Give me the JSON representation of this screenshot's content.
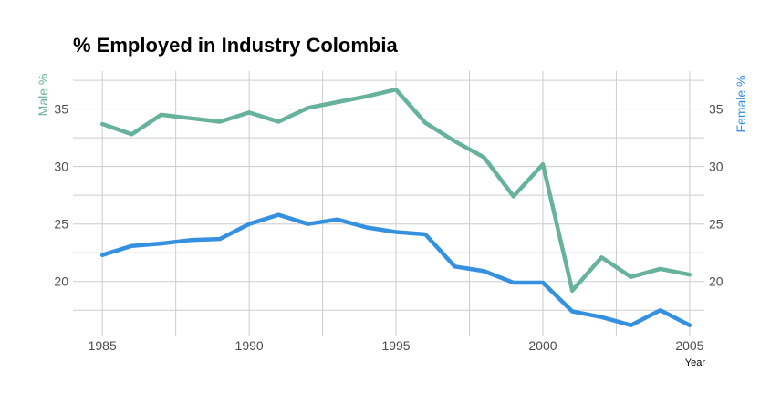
{
  "chart_data": {
    "type": "line",
    "title": "% Employed in Industry Colombia",
    "xlabel": "Year",
    "ylabel_left": "Male %",
    "ylabel_right": "Female %",
    "xlim": [
      1984.0,
      2005.5
    ],
    "ylim": [
      15.3,
      38.3
    ],
    "x_ticks": [
      1985,
      1990,
      1995,
      2000,
      2005
    ],
    "y_ticks": [
      20,
      25,
      30,
      35
    ],
    "grid": true,
    "colors": {
      "male": "#66b29a",
      "female": "#3590e0",
      "left_axis_label": "#66b29a",
      "right_axis_label": "#3590e0"
    },
    "x": [
      1985,
      1986,
      1987,
      1988,
      1989,
      1990,
      1991,
      1992,
      1993,
      1994,
      1995,
      1996,
      1997,
      1998,
      1999,
      2000,
      2001,
      2002,
      2003,
      2004,
      2005
    ],
    "series": [
      {
        "name": "Male %",
        "key": "male",
        "values": [
          33.7,
          32.8,
          34.5,
          34.2,
          33.9,
          34.7,
          33.9,
          35.1,
          35.6,
          36.1,
          36.7,
          33.8,
          32.2,
          30.8,
          27.4,
          30.2,
          19.2,
          22.1,
          20.4,
          21.1,
          20.6
        ]
      },
      {
        "name": "Female %",
        "key": "female",
        "values": [
          22.3,
          23.1,
          23.3,
          23.6,
          23.7,
          25.0,
          25.8,
          25.0,
          25.4,
          24.7,
          24.3,
          24.1,
          21.3,
          20.9,
          19.9,
          19.9,
          17.4,
          16.9,
          16.2,
          17.5,
          16.2
        ]
      }
    ]
  }
}
